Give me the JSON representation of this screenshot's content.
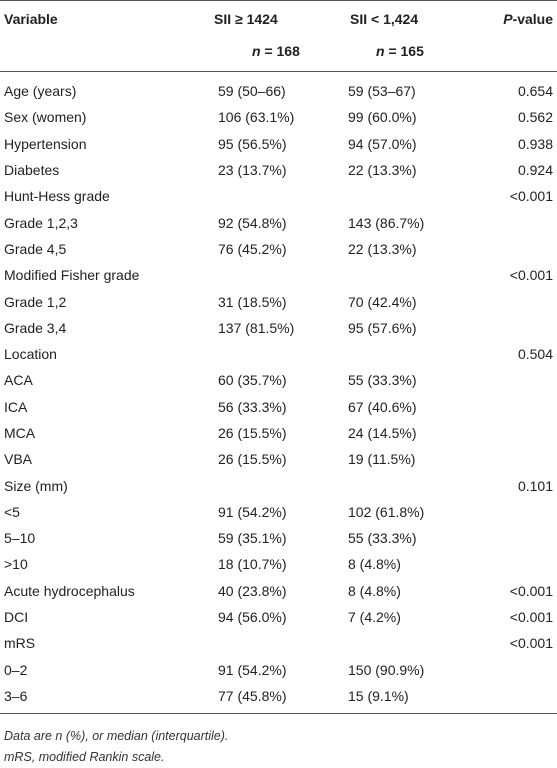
{
  "table": {
    "headers": {
      "variable": "Variable",
      "group1": "SII ≥ 1424",
      "group2": "SII < 1,424",
      "pvalue": "P-value",
      "pvalue_italic_part": "P",
      "pvalue_rest": "-value",
      "n1_prefix": "n",
      "n1_value": " = 168",
      "n2_prefix": "n",
      "n2_value": " = 165"
    },
    "rows": [
      {
        "variable": "Age (years)",
        "g1": "59 (50–66)",
        "g2": "59 (53–67)",
        "p": "0.654"
      },
      {
        "variable": "Sex (women)",
        "g1": "106 (63.1%)",
        "g2": "99 (60.0%)",
        "p": "0.562"
      },
      {
        "variable": "Hypertension",
        "g1": "95 (56.5%)",
        "g2": "94 (57.0%)",
        "p": "0.938"
      },
      {
        "variable": "Diabetes",
        "g1": "23 (13.7%)",
        "g2": "22 (13.3%)",
        "p": "0.924"
      },
      {
        "variable": "Hunt-Hess grade",
        "g1": "",
        "g2": "",
        "p": "<0.001"
      },
      {
        "variable": "Grade 1,2,3",
        "g1": "92 (54.8%)",
        "g2": "143 (86.7%)",
        "p": ""
      },
      {
        "variable": "Grade 4,5",
        "g1": "76 (45.2%)",
        "g2": "22 (13.3%)",
        "p": ""
      },
      {
        "variable": "Modified Fisher grade",
        "g1": "",
        "g2": "",
        "p": "<0.001"
      },
      {
        "variable": "Grade 1,2",
        "g1": "31 (18.5%)",
        "g2": "70 (42.4%)",
        "p": ""
      },
      {
        "variable": "Grade 3,4",
        "g1": "137 (81.5%)",
        "g2": "95 (57.6%)",
        "p": ""
      },
      {
        "variable": "Location",
        "g1": "",
        "g2": "",
        "p": "0.504"
      },
      {
        "variable": "ACA",
        "g1": "60 (35.7%)",
        "g2": "55 (33.3%)",
        "p": ""
      },
      {
        "variable": "ICA",
        "g1": "56 (33.3%)",
        "g2": "67 (40.6%)",
        "p": ""
      },
      {
        "variable": "MCA",
        "g1": "26 (15.5%)",
        "g2": "24 (14.5%)",
        "p": ""
      },
      {
        "variable": "VBA",
        "g1": "26 (15.5%)",
        "g2": "19 (11.5%)",
        "p": ""
      },
      {
        "variable": "Size (mm)",
        "g1": "",
        "g2": "",
        "p": "0.101"
      },
      {
        "variable": "<5",
        "g1": "91 (54.2%)",
        "g2": "102 (61.8%)",
        "p": ""
      },
      {
        "variable": "5–10",
        "g1": "59 (35.1%)",
        "g2": "55 (33.3%)",
        "p": ""
      },
      {
        "variable": ">10",
        "g1": "18 (10.7%)",
        "g2": "8 (4.8%)",
        "p": ""
      },
      {
        "variable": "Acute hydrocephalus",
        "g1": "40 (23.8%)",
        "g2": "8 (4.8%)",
        "p": "<0.001"
      },
      {
        "variable": "DCI",
        "g1": "94 (56.0%)",
        "g2": "7 (4.2%)",
        "p": "<0.001"
      },
      {
        "variable": "mRS",
        "g1": "",
        "g2": "",
        "p": "<0.001"
      },
      {
        "variable": "0–2",
        "g1": "91 (54.2%)",
        "g2": "150 (90.9%)",
        "p": ""
      },
      {
        "variable": "3–6",
        "g1": "77 (45.8%)",
        "g2": "15 (9.1%)",
        "p": ""
      }
    ]
  },
  "footnotes": [
    "Data are n (%), or median (interquartile).",
    "mRS, modified Rankin scale."
  ]
}
